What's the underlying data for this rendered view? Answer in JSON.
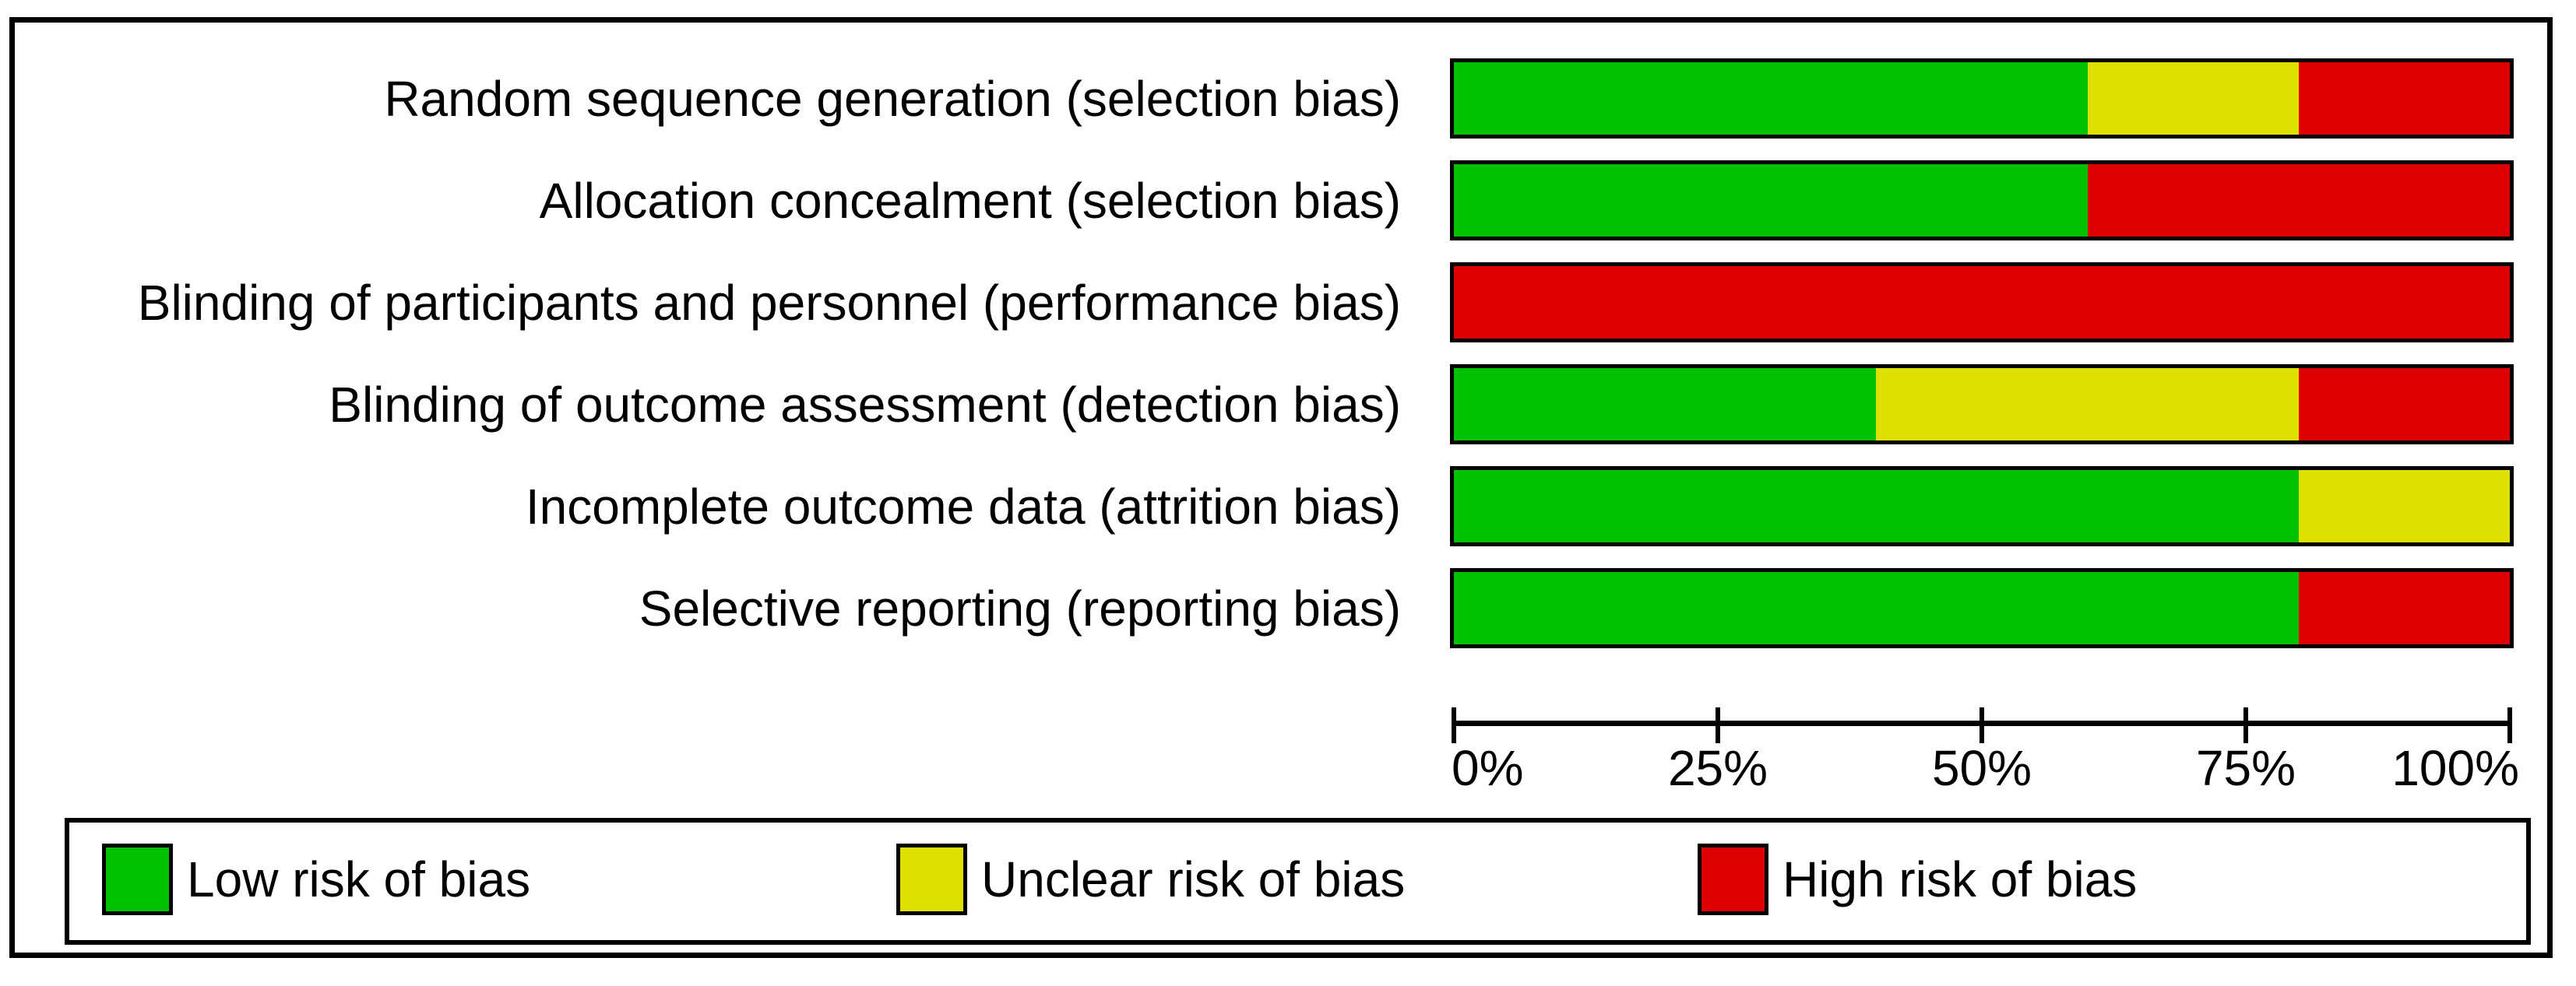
{
  "figure": {
    "kind": "risk-of-bias-graph"
  },
  "chart_data": {
    "type": "bar",
    "orientation": "horizontal",
    "stacked": true,
    "title": "",
    "xlabel": "",
    "ylabel": "",
    "xlim": [
      0,
      100
    ],
    "grid": false,
    "legend_position": "bottom",
    "categories": [
      "Random sequence generation (selection bias)",
      "Allocation concealment (selection bias)",
      "Blinding of participants and personnel (performance bias)",
      "Blinding of outcome assessment (detection bias)",
      "Incomplete outcome data (attrition bias)",
      "Selective reporting (reporting bias)"
    ],
    "series": [
      {
        "name": "Low risk of bias",
        "color": "#02C100",
        "values": [
          60,
          60,
          0,
          40,
          80,
          80
        ]
      },
      {
        "name": "Unclear risk of bias",
        "color": "#DEE000",
        "values": [
          20,
          0,
          0,
          40,
          20,
          0
        ]
      },
      {
        "name": "High risk of bias",
        "color": "#DE0000",
        "values": [
          20,
          40,
          100,
          20,
          0,
          20
        ]
      }
    ],
    "x_tick_labels": [
      "0%",
      "25%",
      "50%",
      "75%",
      "100%"
    ],
    "x_tick_values": [
      0,
      25,
      50,
      75,
      100
    ]
  }
}
